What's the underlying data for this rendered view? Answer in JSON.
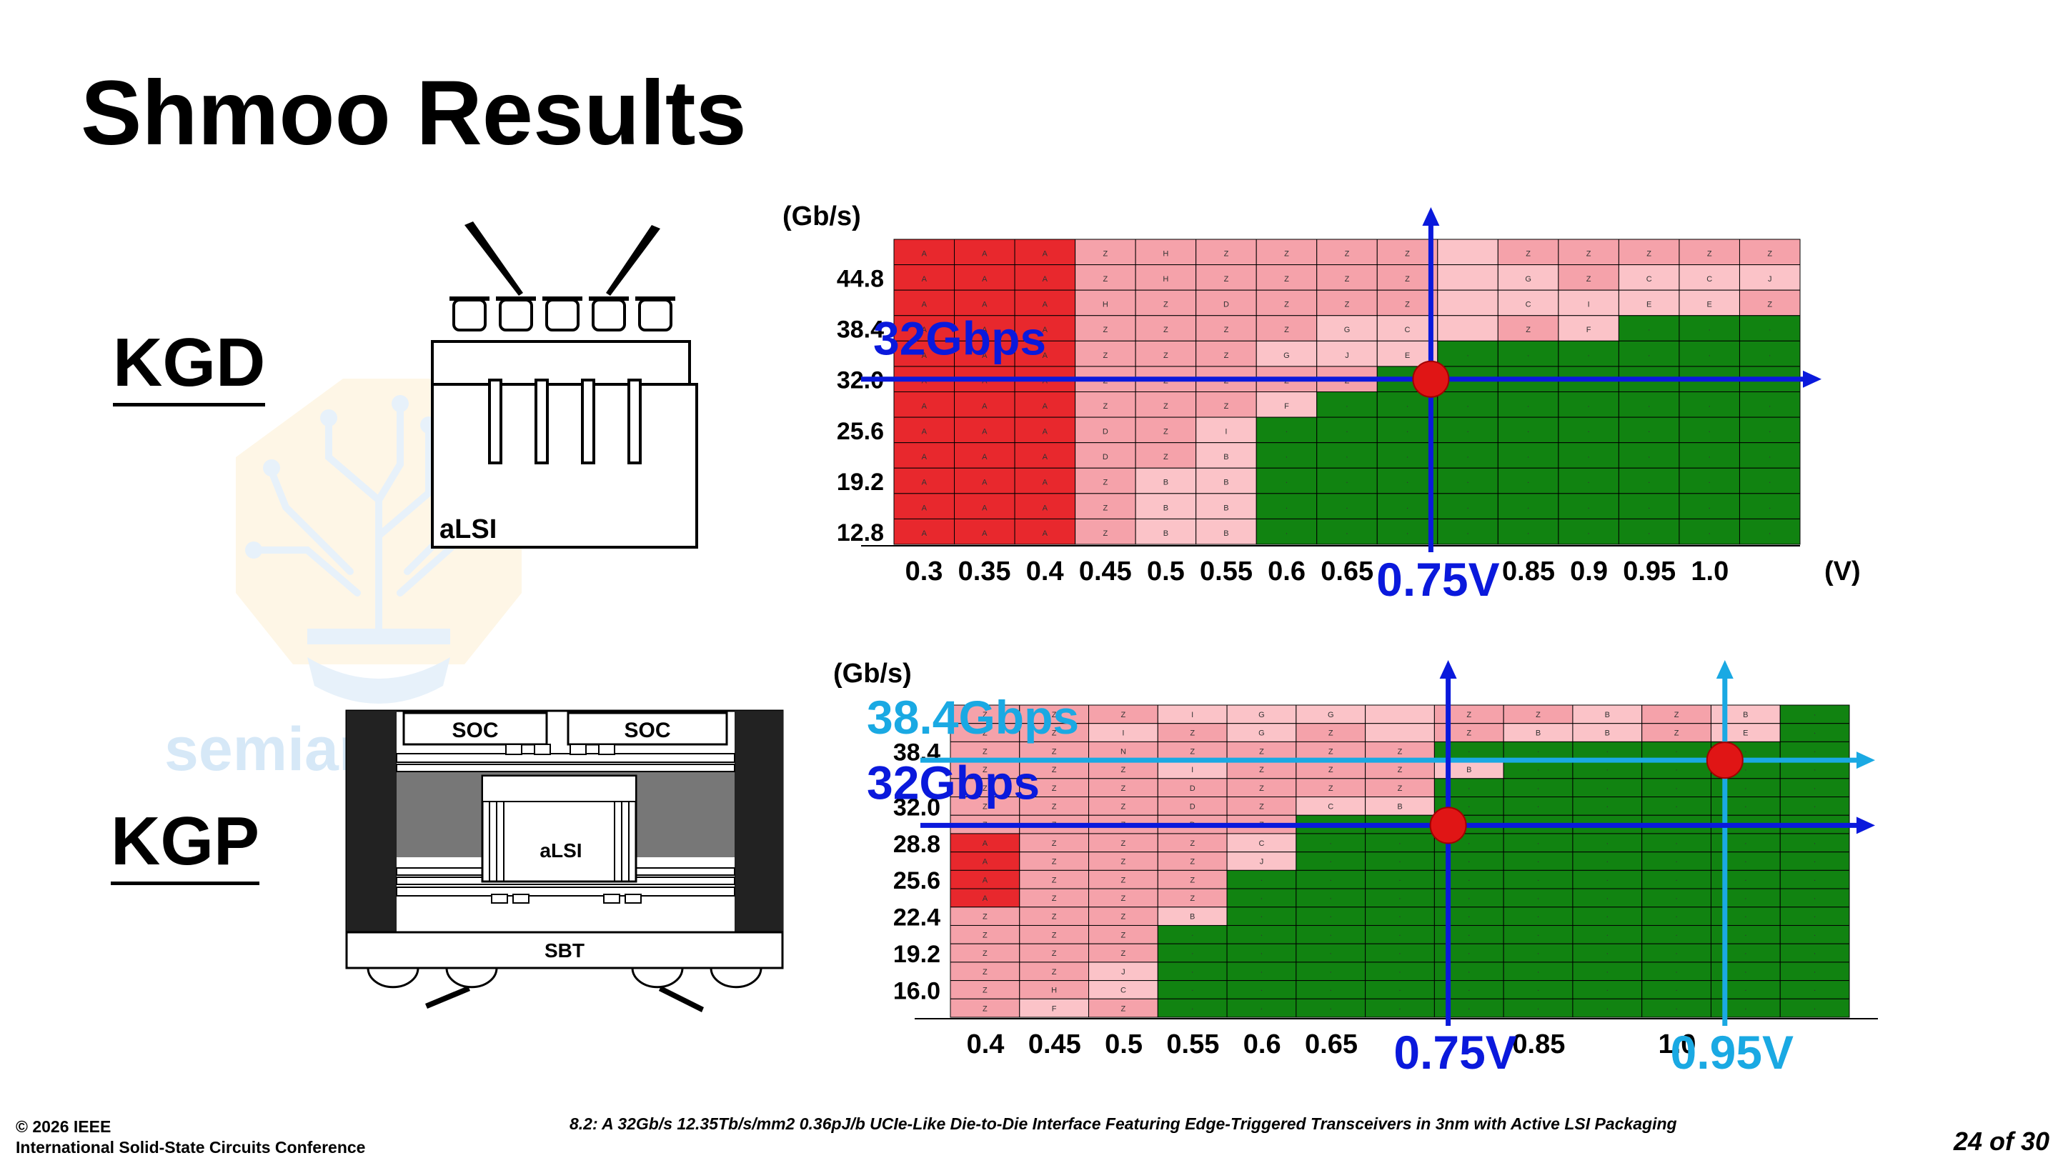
{
  "slide": {
    "title": "Shmoo Results",
    "kgd_label": "KGD",
    "kgp_label": "KGP",
    "watermark_text": "semianalysis",
    "footer_copyright": "© 2026 IEEE",
    "footer_conference": "International Solid-State Circuits Conference",
    "footer_paper": "8.2: A 32Gb/s 12.35Tb/s/mm2 0.36pJ/b UCIe-Like Die-to-Die Interface Featuring Edge-Triggered Transceivers in 3nm with Active LSI Packaging",
    "page_number": "24 of 30"
  },
  "colors": {
    "fail_red": "#e8282d",
    "fail_mid": "#f5a2aa",
    "fail_light": "#fbc3c8",
    "pass_green": "#118311",
    "marker_red": "#e01515",
    "line_blue": "#0a19dc",
    "line_cyan": "#1aa9e3"
  },
  "diagrams": {
    "kgd": {
      "die_label": "aLSI"
    },
    "kgp": {
      "soc_left": "SOC",
      "soc_right": "SOC",
      "die_label": "aLSI",
      "substrate_label": "SBT"
    }
  },
  "chart_data": [
    {
      "type": "heatmap",
      "name": "KGD",
      "ylabel": "(Gb/s)",
      "xlabel": "(V)",
      "x_tick_labels": [
        "0.3",
        "0.35",
        "0.4",
        "0.45",
        "0.5",
        "0.55",
        "0.6",
        "0.65",
        "",
        "",
        "0.85",
        "0.9",
        "0.95",
        "1.0"
      ],
      "y_tick_labels": [
        "",
        "44.8",
        "",
        "38.4",
        "",
        "32.0",
        "",
        "25.6",
        "",
        "19.2",
        "",
        "12.8"
      ],
      "rows": [
        "AAAZHZZZZ ZZZZZ",
        "AAAZHZZZZ GZCCJ",
        "AAAHZDZZZ CIEEZ",
        "AAAZZZZGC ZF...",
        "AAAZZZGJE......",
        "AAAZZZZZ.......",
        "AAAZZZF........",
        "AAADZI.........",
        "AAADZB.........",
        "AAAZBB.........",
        "AAAZBB.........",
        "AAAZBB........."
      ],
      "annotations": [
        {
          "label": "32Gbps",
          "rate": 32.0,
          "voltage": 0.75,
          "voltage_label": "0.75V",
          "color": "line_blue"
        }
      ]
    },
    {
      "type": "heatmap",
      "name": "KGP",
      "ylabel": "(Gb/s)",
      "xlabel": "",
      "x_tick_labels": [
        "0.4",
        "0.45",
        "0.5",
        "0.55",
        "0.6",
        "0.65",
        "",
        "",
        "0.85",
        "",
        "1.0"
      ],
      "y_tick_labels": [
        "",
        "",
        "38.4",
        "",
        "",
        "32.0",
        "",
        "28.8",
        "",
        "25.6",
        "",
        "22.4",
        "",
        "19.2",
        "",
        "16.0"
      ],
      "rows": [
        "ZZZIGG ZZBZB",
        "ZZIZGZ ZBBZE",
        "ZZNZZZZ.....",
        "ZZZIZZZB....",
        "ZZZDZZZ.....",
        "ZZZDZCB.....",
        "ZZZDZ.......",
        "AZZZC.......",
        "AZZZJ.......",
        "AZZZ........",
        "AZZZ........",
        "ZZZB........",
        "ZZZ.........",
        "ZZZ.........",
        "ZZJ.........",
        "ZHC.........",
        "ZFZ........."
      ],
      "annotations": [
        {
          "label": "38.4Gbps",
          "rate": 38.4,
          "voltage": 0.95,
          "voltage_label": "0.95V",
          "color": "line_cyan"
        },
        {
          "label": "32Gbps",
          "rate": 32.0,
          "voltage": 0.75,
          "voltage_label": "0.75V",
          "color": "line_blue"
        }
      ]
    }
  ]
}
